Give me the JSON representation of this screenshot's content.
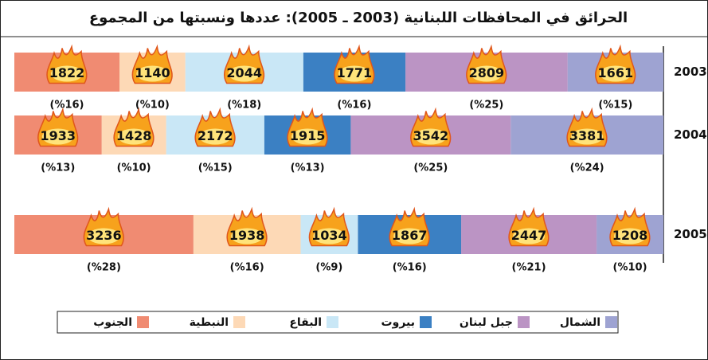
{
  "chart_data": {
    "type": "stacked-bar",
    "title": "الحرائق في المحافظات اللبنانية (2003 ـ 2005): عددها ونسبتها من المجموع",
    "categories": [
      "2003",
      "2004",
      "2005"
    ],
    "series": [
      {
        "name": "الشمال",
        "color": "#9ea3d2",
        "values": [
          1661,
          3381,
          1208
        ],
        "percent_labels": [
          "(%15)",
          "(%24)",
          "(%10)"
        ]
      },
      {
        "name": "جبل لبنان",
        "color": "#bb94c4",
        "values": [
          2809,
          3542,
          2447
        ],
        "percent_labels": [
          "(%25)",
          "(%25)",
          "(%21)"
        ]
      },
      {
        "name": "بيروت",
        "color": "#3b80c3",
        "values": [
          1771,
          1915,
          1867
        ],
        "percent_labels": [
          "(%16)",
          "(%13)",
          "(%16)"
        ]
      },
      {
        "name": "البقاع",
        "color": "#c9e7f6",
        "values": [
          2044,
          2172,
          1034
        ],
        "percent_labels": [
          "(%18)",
          "(%15)",
          "(%9)"
        ]
      },
      {
        "name": "النبطية",
        "color": "#fdd9b6",
        "values": [
          1140,
          1428,
          1938
        ],
        "percent_labels": [
          "(%10)",
          "(%10)",
          "(%16)"
        ]
      },
      {
        "name": "الجنوب",
        "color": "#f08b72",
        "values": [
          1822,
          1933,
          3236
        ],
        "percent_labels": [
          "(%16)",
          "(%13)",
          "(%28)"
        ]
      }
    ]
  }
}
